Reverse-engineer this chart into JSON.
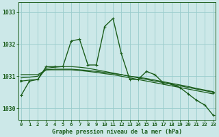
{
  "title": "Graphe pression niveau de la mer (hPa)",
  "bg_color": "#cce8e8",
  "grid_color": "#99cccc",
  "line_color": "#1a5c1a",
  "xlim": [
    -0.3,
    23.3
  ],
  "ylim": [
    1029.65,
    1033.3
  ],
  "yticks": [
    1030,
    1031,
    1032,
    1033
  ],
  "xticks": [
    0,
    1,
    2,
    3,
    4,
    5,
    6,
    7,
    8,
    9,
    10,
    11,
    12,
    13,
    14,
    15,
    16,
    17,
    18,
    19,
    20,
    21,
    22,
    23
  ],
  "s1": [
    1030.4,
    1030.85,
    1030.9,
    1031.3,
    1031.3,
    1031.3,
    1032.1,
    1032.15,
    1031.35,
    1031.35,
    1032.55,
    1032.8,
    1031.7,
    1030.9,
    1030.9,
    1031.15,
    1031.05,
    1030.8,
    1030.75,
    1030.65,
    1030.45,
    1030.25,
    1030.1,
    1029.78
  ],
  "s2": [
    1030.85,
    1030.88,
    1030.9,
    1031.25,
    1031.28,
    1031.3,
    1031.3,
    1031.28,
    1031.25,
    1031.2,
    1031.15,
    1031.1,
    1031.05,
    1031.0,
    1030.95,
    1030.9,
    1030.85,
    1030.8,
    1030.75,
    1030.7,
    1030.65,
    1030.6,
    1030.55,
    1030.5
  ],
  "s3": [
    1030.95,
    1030.97,
    1031.0,
    1031.2,
    1031.22,
    1031.22,
    1031.22,
    1031.2,
    1031.18,
    1031.15,
    1031.12,
    1031.08,
    1031.05,
    1031.0,
    1030.97,
    1030.93,
    1030.88,
    1030.83,
    1030.78,
    1030.73,
    1030.68,
    1030.62,
    1030.57,
    1030.52
  ],
  "s4": [
    1031.05,
    1031.05,
    1031.05,
    1031.2,
    1031.2,
    1031.2,
    1031.2,
    1031.18,
    1031.15,
    1031.12,
    1031.08,
    1031.05,
    1031.0,
    1030.95,
    1030.9,
    1030.85,
    1030.8,
    1030.75,
    1030.7,
    1030.65,
    1030.6,
    1030.55,
    1030.5,
    1030.45
  ]
}
